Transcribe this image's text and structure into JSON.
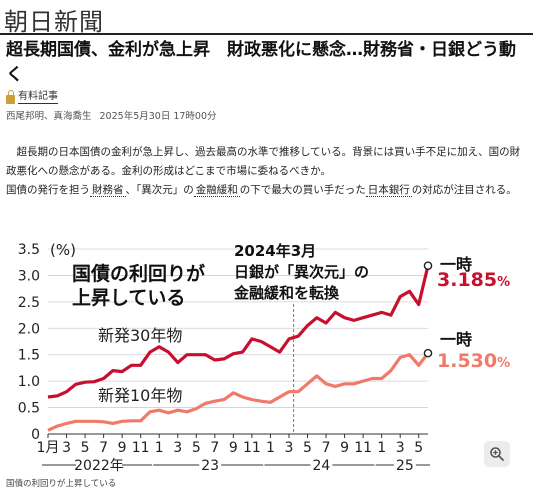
{
  "masthead": "朝日新聞",
  "headline": "超長期国債、金利が急上昇　財政悪化に懸念…財務省・日銀どう動く",
  "premium_label": "有料記事",
  "byline": {
    "authors": "西尾邦明、真海喬生",
    "date": "2025年5月30日 17時00分"
  },
  "body": {
    "p1": "超長期の日本国債の金利が急上昇し、過去最高の水準で推移している。背景には買い手不足に加え、国の財政悪化への懸念がある。金利の形成はどこまで市場に委ねるべきか。",
    "p2_a": "国債の発行を担う",
    "link_mof": "財務省",
    "p2_b": "、「異次元」の",
    "link_easing": "金融緩和",
    "p2_c": "の下で最大の買い手だった",
    "link_boj": "日本銀行",
    "p2_d": "の対応が注目される。"
  },
  "chart_data": {
    "type": "line",
    "title": "国債の利回りが上昇している",
    "ylabel": "(%)",
    "ylim": [
      0,
      3.5
    ],
    "yticks": [
      "0",
      "0.5",
      "1.0",
      "1.5",
      "2.0",
      "2.5",
      "3.0",
      "3.5"
    ],
    "xlim": [
      0,
      41
    ],
    "xtick_labels": [
      "1月",
      "3",
      "5",
      "7",
      "9",
      "11",
      "1",
      "3",
      "5",
      "7",
      "9",
      "11",
      "1",
      "3",
      "5",
      "7",
      "9",
      "11",
      "1",
      "3",
      "5"
    ],
    "year_labels": [
      "2022年",
      "23",
      "24",
      "25"
    ],
    "annotation": {
      "line1": "2024年3月",
      "line2": "日銀が「異次元」の",
      "line3": "金融緩和を転換",
      "x": 26.5
    },
    "series": [
      {
        "name": "新発30年物",
        "color": "#c8102e",
        "x": [
          0,
          1,
          2,
          3,
          4,
          5,
          6,
          7,
          8,
          9,
          10,
          11,
          12,
          13,
          14,
          15,
          16,
          17,
          18,
          19,
          20,
          21,
          22,
          23,
          24,
          25,
          26,
          27,
          28,
          29,
          30,
          31,
          32,
          33,
          34,
          35,
          36,
          37,
          38,
          39,
          40,
          41
        ],
        "values": [
          0.7,
          0.72,
          0.8,
          0.94,
          0.98,
          0.99,
          1.05,
          1.2,
          1.18,
          1.3,
          1.3,
          1.55,
          1.65,
          1.55,
          1.35,
          1.5,
          1.5,
          1.5,
          1.4,
          1.42,
          1.52,
          1.55,
          1.8,
          1.75,
          1.65,
          1.55,
          1.8,
          1.85,
          2.05,
          2.2,
          2.1,
          2.3,
          2.2,
          2.15,
          2.2,
          2.25,
          2.3,
          2.25,
          2.6,
          2.7,
          2.45,
          3.185
        ],
        "end_label": {
          "prefix": "一時",
          "value": "3.185",
          "unit": "%"
        }
      },
      {
        "name": "新発10年物",
        "color": "#f07a6a",
        "x": [
          0,
          1,
          2,
          3,
          4,
          5,
          6,
          7,
          8,
          9,
          10,
          11,
          12,
          13,
          14,
          15,
          16,
          17,
          18,
          19,
          20,
          21,
          22,
          23,
          24,
          25,
          26,
          27,
          28,
          29,
          30,
          31,
          32,
          33,
          34,
          35,
          36,
          37,
          38,
          39,
          40,
          41
        ],
        "values": [
          0.07,
          0.15,
          0.2,
          0.24,
          0.24,
          0.24,
          0.23,
          0.2,
          0.24,
          0.25,
          0.25,
          0.42,
          0.45,
          0.4,
          0.45,
          0.42,
          0.48,
          0.58,
          0.62,
          0.65,
          0.78,
          0.7,
          0.65,
          0.62,
          0.6,
          0.7,
          0.8,
          0.8,
          0.95,
          1.1,
          0.95,
          0.9,
          0.95,
          0.95,
          1.0,
          1.05,
          1.05,
          1.2,
          1.45,
          1.5,
          1.3,
          1.53
        ],
        "end_label": {
          "prefix": "一時",
          "value": "1.530",
          "unit": "%"
        }
      }
    ],
    "grid": true,
    "legend": "inline"
  },
  "caption": "国債の利回りが上昇している",
  "icons": {
    "zoom": "zoom-in-icon",
    "premium": "lock-icon"
  }
}
